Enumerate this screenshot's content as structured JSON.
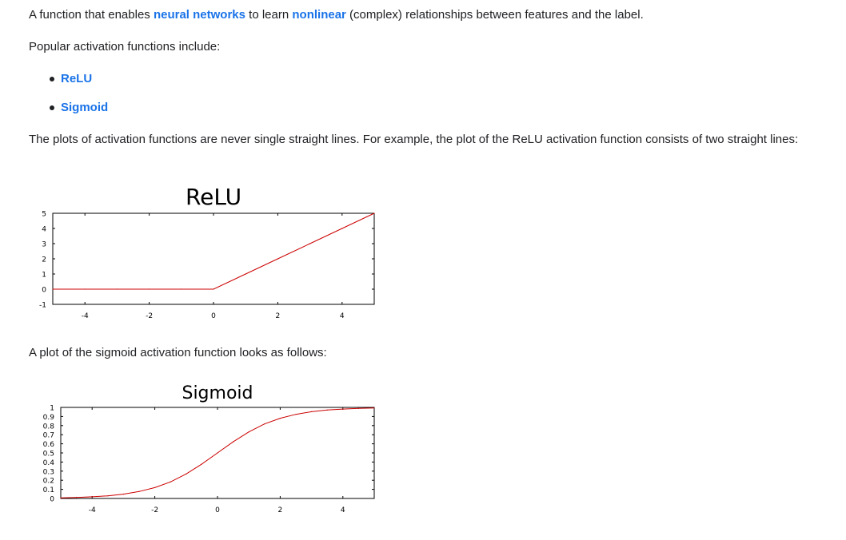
{
  "intro": {
    "before": "A function that enables ",
    "link1": "neural networks",
    "middle": " to learn ",
    "link2": "nonlinear",
    "after": " (complex) relationships between features and the label."
  },
  "popular_text": "Popular activation functions include:",
  "bullets": [
    "ReLU",
    "Sigmoid"
  ],
  "plots_text": "The plots of activation functions are never single straight lines. For example, the plot of the ReLU activation function consists of two straight lines:",
  "sigmoid_text": "A plot of the sigmoid activation function looks as follows:",
  "colors": {
    "link": "#1a73e8",
    "curve": "#cc0000"
  },
  "chart_data": [
    {
      "type": "line",
      "title": "ReLU",
      "xlim": [
        -5,
        5
      ],
      "ylim": [
        -1,
        5
      ],
      "xticks": [
        "-4",
        "-2",
        "0",
        "2",
        "4"
      ],
      "yticks": [
        "-1",
        "0",
        "1",
        "2",
        "3",
        "4",
        "5"
      ],
      "x": [
        -5,
        -4,
        -3,
        -2,
        -1,
        0,
        1,
        2,
        3,
        4,
        5
      ],
      "series": [
        {
          "values": [
            0,
            0,
            0,
            0,
            0,
            0,
            1,
            2,
            3,
            4,
            5
          ]
        }
      ],
      "grid": false
    },
    {
      "type": "line",
      "title": "Sigmoid",
      "xlim": [
        -5,
        5
      ],
      "ylim": [
        0,
        1
      ],
      "xticks": [
        "-4",
        "-2",
        "0",
        "2",
        "4"
      ],
      "yticks": [
        "0",
        "0.1",
        "0.2",
        "0.3",
        "0.4",
        "0.5",
        "0.6",
        "0.7",
        "0.8",
        "0.9",
        "1"
      ],
      "x": [
        -5,
        -4.5,
        -4,
        -3.5,
        -3,
        -2.5,
        -2,
        -1.5,
        -1,
        -0.5,
        0,
        0.5,
        1,
        1.5,
        2,
        2.5,
        3,
        3.5,
        4,
        4.5,
        5
      ],
      "series": [
        {
          "values": [
            0.007,
            0.011,
            0.018,
            0.029,
            0.047,
            0.076,
            0.119,
            0.182,
            0.269,
            0.378,
            0.5,
            0.622,
            0.731,
            0.818,
            0.881,
            0.924,
            0.953,
            0.971,
            0.982,
            0.989,
            0.993
          ]
        }
      ],
      "grid": false
    }
  ]
}
